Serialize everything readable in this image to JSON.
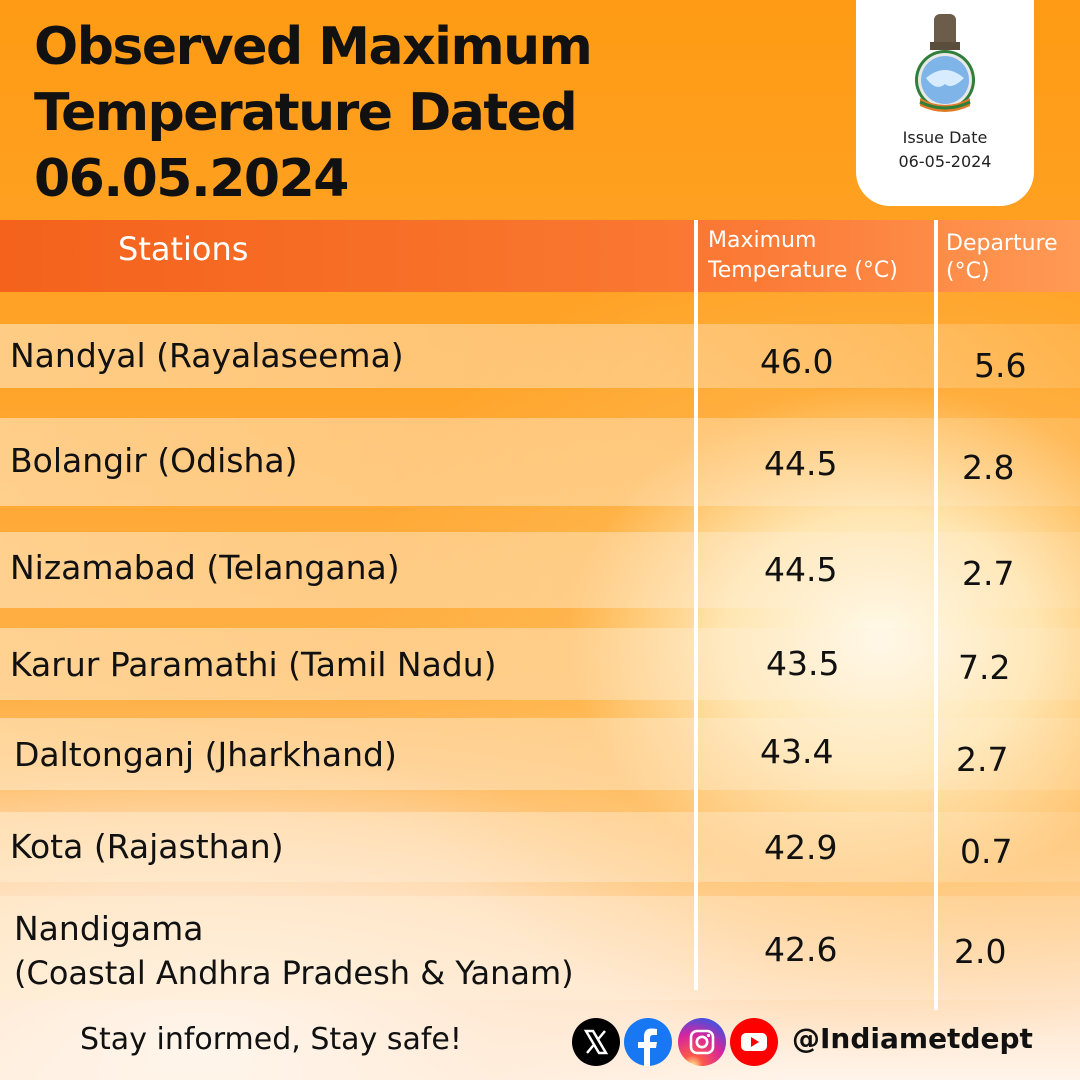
{
  "title": {
    "line1": "Observed Maximum",
    "line2": "Temperature Dated",
    "line3": "06.05.2024"
  },
  "badge": {
    "label": "Issue Date",
    "date": "06-05-2024",
    "emblem_icon": "imd-emblem-icon"
  },
  "table": {
    "headers": {
      "stations": "Stations",
      "max_line1": "Maximum",
      "max_line2": "Temperature (°C)",
      "dep_line1": "Departure",
      "dep_line2": "(°C)"
    },
    "rows": [
      {
        "station": "Nandyal (Rayalaseema)",
        "max": "46.0",
        "dep": "5.6"
      },
      {
        "station": "Bolangir (Odisha)",
        "max": "44.5",
        "dep": "2.8"
      },
      {
        "station": "Nizamabad (Telangana)",
        "max": "44.5",
        "dep": "2.7"
      },
      {
        "station": "Karur Paramathi (Tamil Nadu)",
        "max": "43.5",
        "dep": "7.2"
      },
      {
        "station": "Daltonganj (Jharkhand)",
        "max": "43.4",
        "dep": "2.7"
      },
      {
        "station": "Kota (Rajasthan)",
        "max": "42.9",
        "dep": "0.7"
      },
      {
        "station_line1": "Nandigama",
        "station_line2": "(Coastal Andhra Pradesh & Yanam)",
        "max": "42.6",
        "dep": "2.0"
      }
    ]
  },
  "footer": {
    "tagline": "Stay informed, Stay safe!",
    "handle": "@Indiametdept",
    "icons": [
      "x-icon",
      "facebook-icon",
      "instagram-icon",
      "youtube-icon"
    ],
    "colors": {
      "x": "#000000",
      "facebook": "#1877f2",
      "instagram": "#d6249f",
      "youtube": "#ff0000"
    }
  }
}
